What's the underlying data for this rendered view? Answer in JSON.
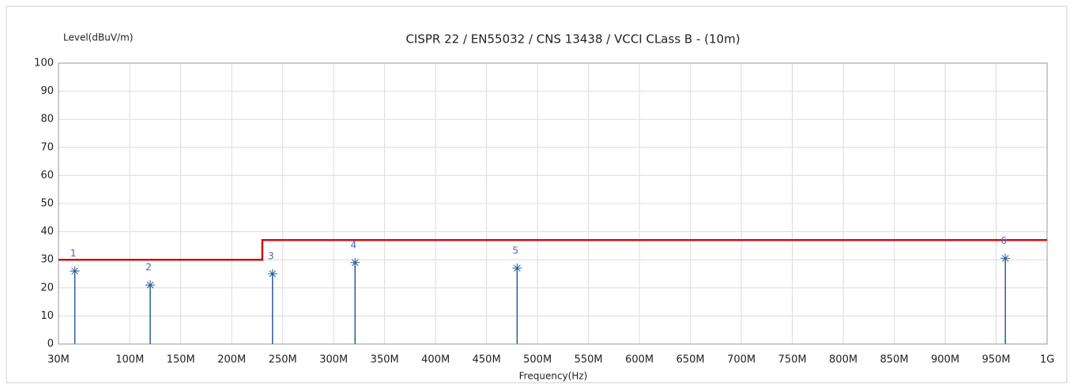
{
  "chart_data": {
    "type": "stem",
    "title": "CISPR 22 / EN55032 / CNS 13438 / VCCI CLass B - (10m)",
    "ylabel": "Level(dBuV/m)",
    "xlabel": "Frequency(Hz)",
    "xlim": [
      30,
      1000
    ],
    "ylim": [
      0,
      100
    ],
    "xticks": [
      {
        "value": 30,
        "label": "30M"
      },
      {
        "value": 100,
        "label": "100M"
      },
      {
        "value": 150,
        "label": "150M"
      },
      {
        "value": 200,
        "label": "200M"
      },
      {
        "value": 250,
        "label": "250M"
      },
      {
        "value": 300,
        "label": "300M"
      },
      {
        "value": 350,
        "label": "350M"
      },
      {
        "value": 400,
        "label": "400M"
      },
      {
        "value": 450,
        "label": "450M"
      },
      {
        "value": 500,
        "label": "500M"
      },
      {
        "value": 550,
        "label": "550M"
      },
      {
        "value": 600,
        "label": "600M"
      },
      {
        "value": 650,
        "label": "650M"
      },
      {
        "value": 700,
        "label": "700M"
      },
      {
        "value": 750,
        "label": "750M"
      },
      {
        "value": 800,
        "label": "800M"
      },
      {
        "value": 850,
        "label": "850M"
      },
      {
        "value": 900,
        "label": "900M"
      },
      {
        "value": 950,
        "label": "950M"
      },
      {
        "value": 1000,
        "label": "1G"
      }
    ],
    "yticks": [
      0,
      10,
      20,
      30,
      40,
      50,
      60,
      70,
      80,
      90,
      100
    ],
    "grid": true,
    "limit": {
      "color": "#cc1111",
      "x": [
        30,
        230,
        230,
        1000
      ],
      "values": [
        30,
        30,
        37,
        37
      ]
    },
    "peaks": {
      "color": "#2a5a9a",
      "label_color": "#4466bb",
      "x": [
        46,
        120,
        240,
        321,
        480,
        959
      ],
      "values": [
        26,
        21,
        25,
        29,
        27,
        30.5
      ],
      "labels": [
        "1",
        "2",
        "3",
        "4",
        "5",
        "6"
      ]
    }
  }
}
